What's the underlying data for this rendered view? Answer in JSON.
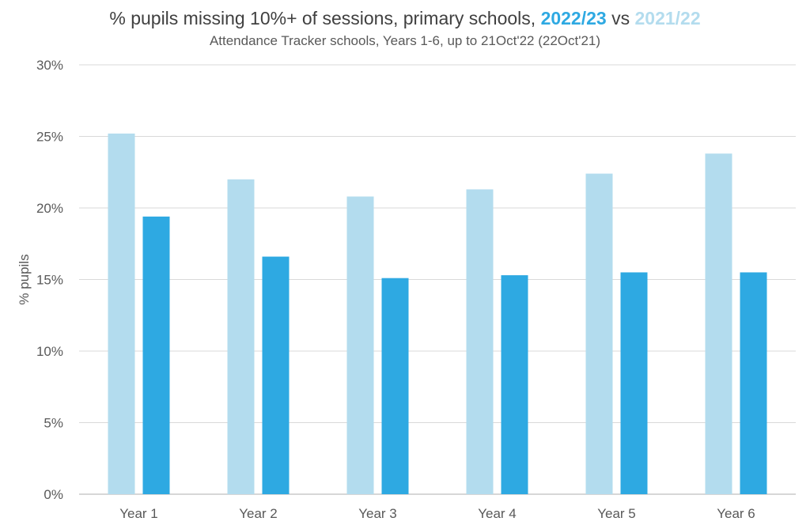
{
  "title": {
    "prefix": "% pupils missing 10%+ of sessions, primary schools, ",
    "current": "2022/23",
    "joiner": " vs ",
    "prior": "2021/22"
  },
  "subtitle": "Attendance Tracker schools, Years 1-6, up to 21Oct'22 (22Oct'21)",
  "colors": {
    "current": "#2EA9E2",
    "prior": "#B3DCEE",
    "grid": "#D9D9D9",
    "axis": "#BFBFBF"
  },
  "chart_data": {
    "type": "bar",
    "categories": [
      "Year 1",
      "Year 2",
      "Year 3",
      "Year 4",
      "Year 5",
      "Year 6"
    ],
    "series": [
      {
        "name": "2021/22",
        "values": [
          25.2,
          22.0,
          20.8,
          21.3,
          22.4,
          23.8
        ]
      },
      {
        "name": "2022/23",
        "values": [
          19.4,
          16.6,
          15.1,
          15.3,
          15.5,
          15.5
        ]
      }
    ],
    "ylabel": "% pupils",
    "xlabel": "",
    "ylim": [
      0,
      30
    ],
    "yticks": [
      0,
      5,
      10,
      15,
      20,
      25,
      30
    ],
    "ytick_labels": [
      "0%",
      "5%",
      "10%",
      "15%",
      "20%",
      "25%",
      "30%"
    ],
    "grid": true,
    "legend": "none"
  }
}
